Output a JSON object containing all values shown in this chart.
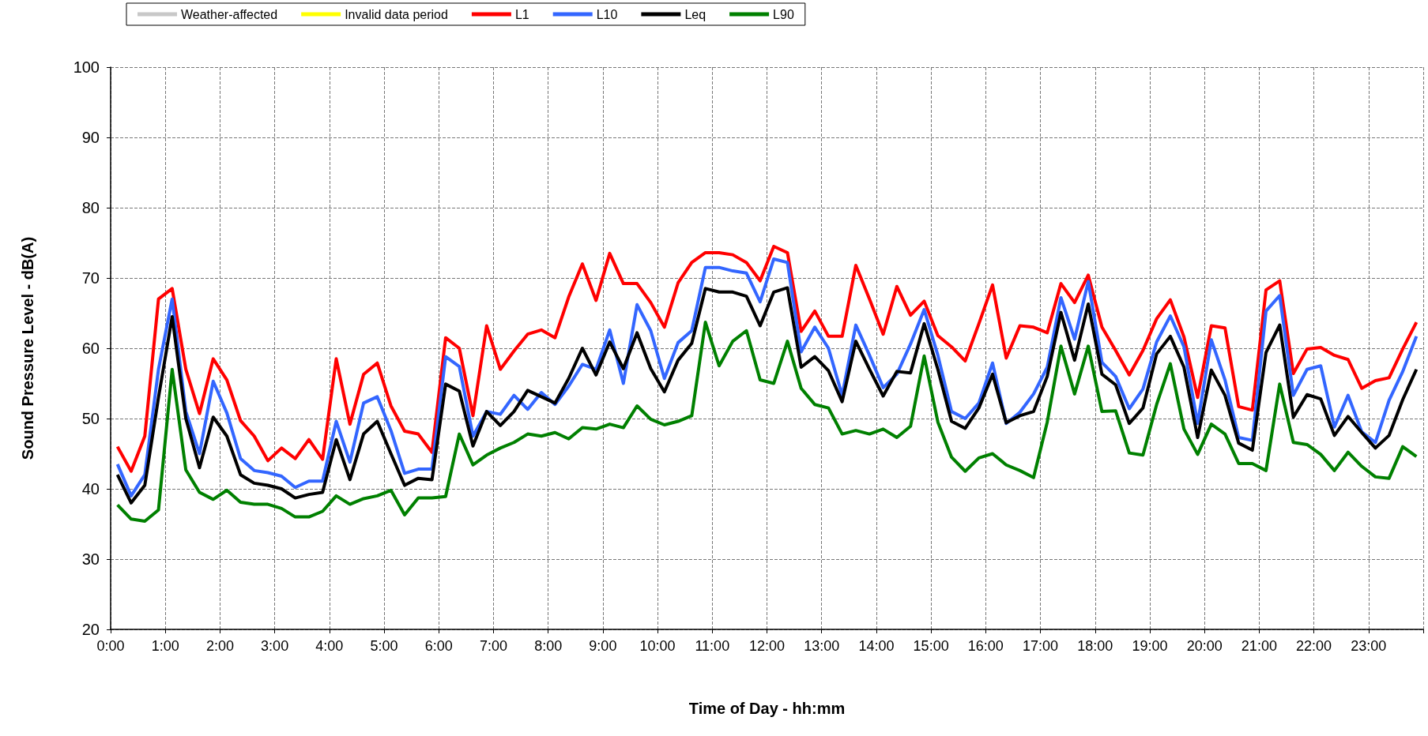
{
  "chart_data": {
    "type": "line",
    "xlabel": "Time of Day - hh:mm",
    "ylabel": "Sound Pressure Level - dB(A)",
    "x": [
      0.125,
      0.375,
      0.625,
      0.875,
      1.125,
      1.375,
      1.625,
      1.875,
      2.125,
      2.375,
      2.625,
      2.875,
      3.125,
      3.375,
      3.625,
      3.875,
      4.125,
      4.375,
      4.625,
      4.875,
      5.125,
      5.375,
      5.625,
      5.875,
      6.125,
      6.375,
      6.625,
      6.875,
      7.125,
      7.375,
      7.625,
      7.875,
      8.125,
      8.375,
      8.625,
      8.875,
      9.125,
      9.375,
      9.625,
      9.875,
      10.125,
      10.375,
      10.625,
      10.875,
      11.125,
      11.375,
      11.625,
      11.875,
      12.125,
      12.375,
      12.625,
      12.875,
      13.125,
      13.375,
      13.625,
      13.875,
      14.125,
      14.375,
      14.625,
      14.875,
      15.125,
      15.375,
      15.625,
      15.875,
      16.125,
      16.375,
      16.625,
      16.875,
      17.125,
      17.375,
      17.625,
      17.875,
      18.125,
      18.375,
      18.625,
      18.875,
      19.125,
      19.375,
      19.625,
      19.875,
      20.125,
      20.375,
      20.625,
      20.875,
      21.125,
      21.375,
      21.625,
      21.875,
      22.125,
      22.375,
      22.625,
      22.875,
      23.125,
      23.375,
      23.625,
      23.875
    ],
    "xlim": [
      0,
      24
    ],
    "xticks": [
      {
        "value": 0,
        "label": "0:00"
      },
      {
        "value": 1,
        "label": "1:00"
      },
      {
        "value": 2,
        "label": "2:00"
      },
      {
        "value": 3,
        "label": "3:00"
      },
      {
        "value": 4,
        "label": "4:00"
      },
      {
        "value": 5,
        "label": "5:00"
      },
      {
        "value": 6,
        "label": "6:00"
      },
      {
        "value": 7,
        "label": "7:00"
      },
      {
        "value": 8,
        "label": "8:00"
      },
      {
        "value": 9,
        "label": "9:00"
      },
      {
        "value": 10,
        "label": "10:00"
      },
      {
        "value": 11,
        "label": "11:00"
      },
      {
        "value": 12,
        "label": "12:00"
      },
      {
        "value": 13,
        "label": "13:00"
      },
      {
        "value": 14,
        "label": "14:00"
      },
      {
        "value": 15,
        "label": "15:00"
      },
      {
        "value": 16,
        "label": "16:00"
      },
      {
        "value": 17,
        "label": "17:00"
      },
      {
        "value": 18,
        "label": "18:00"
      },
      {
        "value": 19,
        "label": "19:00"
      },
      {
        "value": 20,
        "label": "20:00"
      },
      {
        "value": 21,
        "label": "21:00"
      },
      {
        "value": 22,
        "label": "22:00"
      },
      {
        "value": 23,
        "label": "23:00"
      },
      {
        "value": 24,
        "label": null
      }
    ],
    "ylim": [
      20,
      100
    ],
    "yticks": [
      20,
      30,
      40,
      50,
      60,
      70,
      80,
      90,
      100
    ],
    "grid": true,
    "legend": "top left",
    "marker": "none",
    "line_style": "solid",
    "series": [
      {
        "name": "Weather-affected",
        "color": "#c8c8c8",
        "type": "area",
        "values": [
          null,
          null,
          null,
          null,
          null,
          null,
          null,
          null,
          null,
          null,
          null,
          null,
          null,
          null,
          null,
          null,
          null,
          null,
          null,
          null,
          null,
          null,
          null,
          null,
          null,
          null,
          null,
          null,
          null,
          null,
          null,
          null,
          null,
          null,
          null,
          null,
          null,
          null,
          null,
          null,
          null,
          null,
          null,
          null,
          null,
          null,
          null,
          null,
          null,
          null,
          null,
          null,
          null,
          null,
          null,
          null,
          null,
          null,
          null,
          null,
          null,
          null,
          null,
          null,
          null,
          null,
          null,
          null,
          null,
          null,
          null,
          null,
          null,
          null,
          null,
          null,
          null,
          null,
          null,
          null,
          null,
          null,
          null,
          null,
          null,
          null,
          null,
          null,
          null,
          null,
          null,
          null,
          null,
          null,
          null,
          null
        ]
      },
      {
        "name": "Invalid data period",
        "color": "#ffff00",
        "type": "area",
        "values": [
          null,
          null,
          null,
          null,
          null,
          null,
          null,
          null,
          null,
          null,
          null,
          null,
          null,
          null,
          null,
          null,
          null,
          null,
          null,
          null,
          null,
          null,
          null,
          null,
          null,
          null,
          null,
          null,
          null,
          null,
          null,
          null,
          null,
          null,
          null,
          null,
          null,
          null,
          null,
          null,
          null,
          null,
          null,
          null,
          null,
          null,
          null,
          null,
          null,
          null,
          null,
          null,
          null,
          null,
          null,
          null,
          null,
          null,
          null,
          null,
          null,
          null,
          null,
          null,
          null,
          null,
          null,
          null,
          null,
          null,
          null,
          null,
          null,
          null,
          null,
          null,
          null,
          null,
          null,
          null,
          null,
          null,
          null,
          null,
          null,
          null,
          null,
          null,
          null,
          null,
          null,
          null,
          null,
          null,
          null,
          null
        ]
      },
      {
        "name": "L1",
        "color": "#ff0000",
        "values": [
          46,
          42.5,
          47.5,
          67,
          68.5,
          57,
          50.7,
          58.5,
          55.5,
          49.7,
          47.5,
          44,
          45.8,
          44.3,
          47,
          44.2,
          58.5,
          49.2,
          56.3,
          57.9,
          51.8,
          48.2,
          47.8,
          45.2,
          61.5,
          60,
          50.4,
          63.2,
          57,
          59.6,
          62,
          62.6,
          61.5,
          67.3,
          72,
          66.8,
          73.5,
          69.2,
          69.2,
          66.5,
          63,
          69.3,
          72.2,
          73.6,
          73.6,
          73.3,
          72.2,
          69.6,
          74.5,
          73.6,
          62.4,
          65.3,
          61.7,
          61.7,
          71.8,
          67,
          62,
          68.8,
          64.7,
          66.7,
          61.8,
          60.2,
          58.2,
          63.5,
          69,
          58.6,
          63.2,
          63,
          62.2,
          69.2,
          66.5,
          70.4,
          63,
          59.7,
          56.2,
          59.7,
          64.2,
          66.9,
          61.6,
          53,
          63.2,
          62.9,
          51.7,
          51.2,
          68.3,
          69.6,
          56.4,
          59.9,
          60.1,
          59,
          58.4,
          54.3,
          55.4,
          55.8,
          59.9,
          63.7
        ]
      },
      {
        "name": "L10",
        "color": "#3366ff",
        "values": [
          43.5,
          39,
          42,
          57,
          67,
          51,
          45,
          55.3,
          50.8,
          44.3,
          42.6,
          42.3,
          41.8,
          40.2,
          41.1,
          41.1,
          49.6,
          43.8,
          52.2,
          53.1,
          48.3,
          42.2,
          42.8,
          42.8,
          58.8,
          57.4,
          47.5,
          51,
          50.6,
          53.3,
          51.3,
          53.7,
          52,
          54.6,
          57.7,
          57,
          62.6,
          55,
          66.2,
          62.5,
          55.7,
          60.8,
          62.5,
          71.5,
          71.5,
          71,
          70.7,
          66.6,
          72.7,
          72.2,
          59.5,
          63,
          60,
          53.3,
          63.3,
          59,
          54.4,
          56.3,
          60.6,
          65.5,
          59,
          51,
          50,
          52.2,
          57.9,
          49.3,
          50.9,
          53.5,
          57.3,
          67.2,
          61.3,
          69.5,
          58,
          56,
          51.4,
          54.2,
          60.9,
          64.6,
          60.2,
          49.3,
          61.2,
          55.5,
          47.3,
          46.9,
          65.3,
          67.5,
          53.3,
          57,
          57.5,
          48.8,
          53.3,
          48.1,
          46.6,
          52.6,
          56.7,
          61.7
        ]
      },
      {
        "name": "Leq",
        "color": "#000000",
        "values": [
          42,
          38,
          40.5,
          53,
          64.5,
          50,
          43,
          50.2,
          47.5,
          42,
          40.8,
          40.5,
          40,
          38.7,
          39.2,
          39.5,
          47,
          41.3,
          47.8,
          49.6,
          45,
          40.5,
          41.5,
          41.3,
          54.9,
          53.9,
          46.1,
          51,
          49,
          51,
          54,
          53.1,
          52.2,
          55.7,
          60,
          56.2,
          60.9,
          57.1,
          62.2,
          57.1,
          53.8,
          58.3,
          60.7,
          68.5,
          68,
          68,
          67.4,
          63.2,
          68,
          68.6,
          57.3,
          58.8,
          56.8,
          52.4,
          61,
          57,
          53.2,
          56.7,
          56.5,
          63.5,
          57,
          49.6,
          48.6,
          51.5,
          56.3,
          49.4,
          50.4,
          51,
          56,
          65.1,
          58.3,
          66.3,
          56.3,
          54.8,
          49.3,
          51.5,
          59.2,
          61.7,
          57.3,
          47.3,
          56.9,
          53.3,
          46.5,
          45.5,
          59.4,
          63.3,
          50.2,
          53.4,
          52.8,
          47.6,
          50.3,
          48,
          45.8,
          47.6,
          52.7,
          57
        ]
      },
      {
        "name": "L90",
        "color": "#008000",
        "values": [
          37.7,
          35.7,
          35.4,
          37,
          57,
          42.7,
          39.5,
          38.5,
          39.8,
          38.1,
          37.8,
          37.8,
          37.2,
          36,
          36,
          36.8,
          39,
          37.8,
          38.6,
          39,
          39.8,
          36.3,
          38.7,
          38.7,
          38.9,
          47.8,
          43.4,
          44.8,
          45.8,
          46.6,
          47.8,
          47.5,
          48,
          47.1,
          48.7,
          48.5,
          49.2,
          48.7,
          51.8,
          49.9,
          49.1,
          49.6,
          50.4,
          63.7,
          57.5,
          61,
          62.5,
          55.5,
          55,
          61,
          54.3,
          52,
          51.5,
          47.8,
          48.3,
          47.8,
          48.5,
          47.3,
          48.9,
          58.9,
          49.5,
          44.5,
          42.5,
          44.4,
          45,
          43.4,
          42.6,
          41.6,
          49.5,
          60.3,
          53.5,
          60.3,
          51,
          51.1,
          45.1,
          44.8,
          52,
          57.8,
          48.5,
          44.9,
          49.2,
          47.8,
          43.6,
          43.6,
          42.6,
          54.9,
          46.6,
          46.3,
          44.9,
          42.6,
          45.2,
          43.2,
          41.7,
          41.5,
          46,
          44.6
        ]
      }
    ]
  }
}
